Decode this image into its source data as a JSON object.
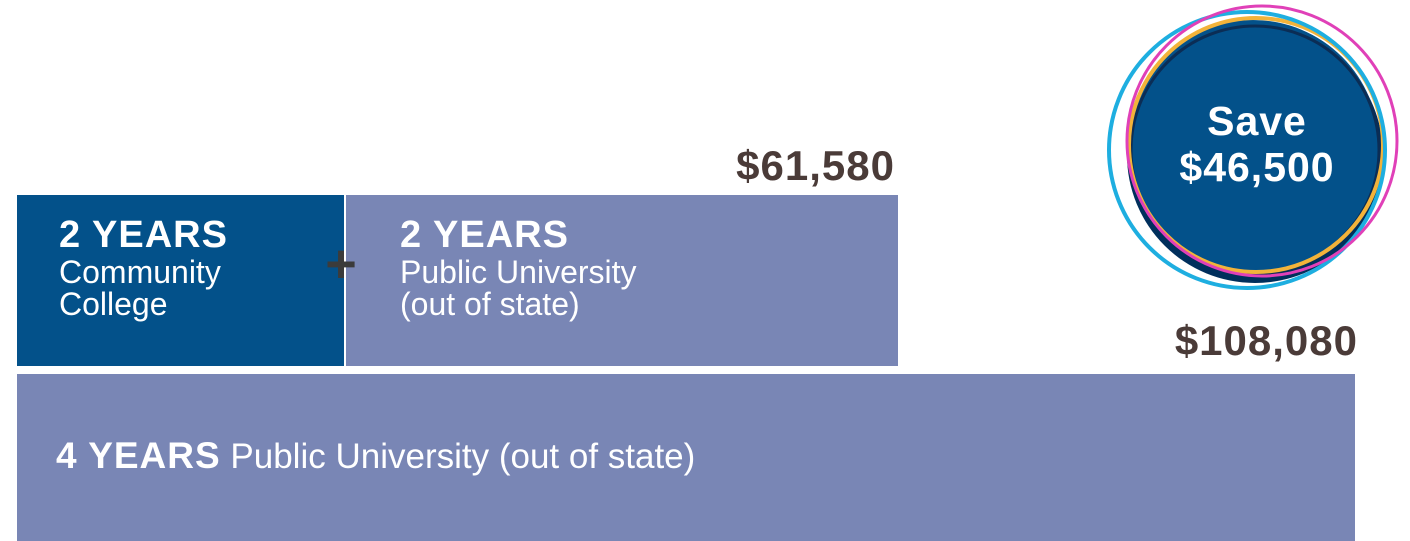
{
  "chart_data": {
    "type": "bar",
    "orientation": "horizontal",
    "categories": [
      "2 YEARS Community College + 2 YEARS Public University (out of state)",
      "4 YEARS Public University (out of state)"
    ],
    "values": [
      61580,
      108080
    ],
    "value_labels": [
      "$61,580",
      "$108,080"
    ],
    "stacked_segments": [
      {
        "years": "2 YEARS",
        "line1": "Community",
        "line2": "College"
      },
      {
        "years": "2 YEARS",
        "line1": "Public University",
        "line2": "(out of state)"
      }
    ],
    "plus_symbol": "+",
    "four_year": {
      "years": "4 YEARS",
      "label": "Public University (out of state)"
    },
    "savings": {
      "line1": "Save",
      "line2": "$46,500",
      "value": 46500
    },
    "title": "",
    "xlabel": "",
    "ylabel": "",
    "grid": false,
    "legend": "none",
    "colors": {
      "community_college": "#03518a",
      "public_university": "#7986b5",
      "value_text": "#4a3b38",
      "badge_fill": "#03518a",
      "ring_pink": "#e040b8",
      "ring_yellow": "#f2b33a",
      "ring_cyan": "#1eaee0",
      "ring_navy": "#002f5c"
    }
  }
}
